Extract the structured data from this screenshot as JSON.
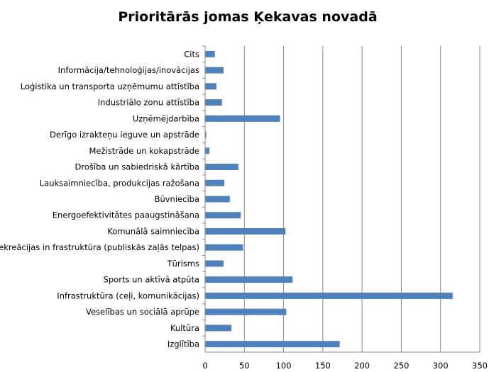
{
  "chart_data": {
    "type": "bar",
    "orientation": "horizontal",
    "title": "Prioritārās jomas Ķekavas novadā",
    "xlabel": "",
    "ylabel": "",
    "xlim": [
      0,
      350
    ],
    "ticks": [
      "0",
      "50",
      "100",
      "150",
      "200",
      "250",
      "300",
      "350"
    ],
    "grid": true,
    "legend": "none",
    "bar_color": "#4f81bd",
    "categories": [
      "Cits",
      "Informācija/tehnoloģijas/inovācijas",
      "Loģistika un transporta uzņēmumu attīstība",
      "Industriālo zonu attīstība",
      "Uzņēmējdarbība",
      "Derīgo izrakteņu ieguve un apstrāde",
      "Mežistrāde un kokapstrāde",
      "Drošība un sabiedriskā kārtība",
      "Lauksaimniecība, produkcijas ražošana",
      "Būvniecība",
      "Energoefektivitātes paaugstināšana",
      "Komunālā saimniecība",
      "Rekreācijas in frastruktūra (publiskās zaļās telpas)",
      "Tūrisms",
      "Sports un aktīvā atpūta",
      "Infrastruktūra (ceļi, komunikācijas)",
      "Veselības un sociālā aprūpe",
      "Kultūra",
      "Izglītība"
    ],
    "values": [
      12,
      23,
      14,
      21,
      95,
      1,
      5,
      42,
      24,
      31,
      45,
      102,
      48,
      23,
      111,
      315,
      103,
      33,
      171
    ]
  }
}
